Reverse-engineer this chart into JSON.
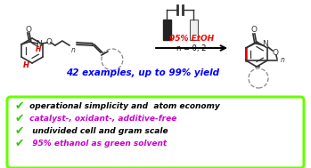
{
  "bg_color": "#ffffff",
  "box_edge": "#66ff00",
  "blue_text": "#0000ff",
  "red_text": "#ff0000",
  "purple_text": "#cc00cc",
  "green_check": "#33cc00",
  "black_text": "#000000",
  "dark_gray": "#333333",
  "bullet_lines": [
    {
      "text": " operational simplicity and  atom economy",
      "color": "#000000"
    },
    {
      "text": " catalyst-, oxidant-, additive-free",
      "color": "#cc00cc"
    },
    {
      "text": "  undivided cell and gram scale",
      "color": "#000000"
    },
    {
      "text": "  95% ethanol as green solvent",
      "color": "#cc00cc"
    }
  ],
  "check_mark": "✔",
  "examples_text": "42 examples, up to 99% yield",
  "conditions_line1": "95% EtOH",
  "conditions_line2": "n = 0, 2",
  "figsize": [
    3.49,
    1.89
  ],
  "dpi": 100
}
